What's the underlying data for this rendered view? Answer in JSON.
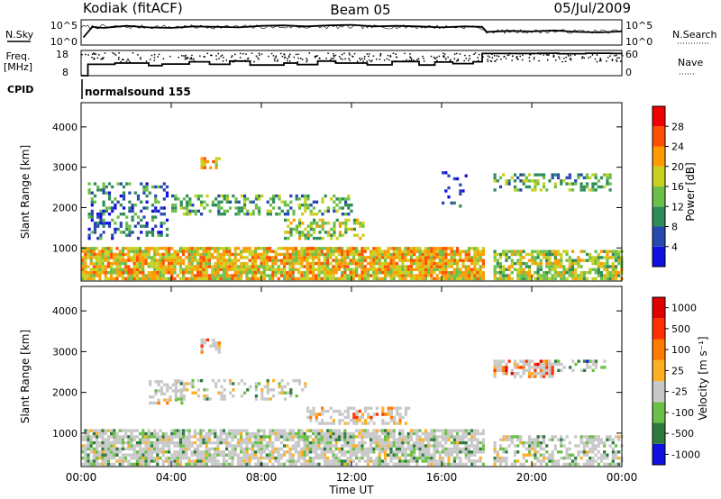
{
  "header": {
    "station": "Kodiak (fitACF)",
    "beam": "Beam 05",
    "date": "05/Jul/2009"
  },
  "chart_data": [
    {
      "type": "line",
      "title": "",
      "left_label": "N.Sky",
      "right_label": "N.Search",
      "ytick_labels": [
        "10^5",
        "10^0"
      ],
      "right_tick_labels": [
        "10^5",
        "10^0"
      ],
      "x_hours": [
        0.1,
        0.5,
        1,
        2,
        3,
        4,
        5,
        6,
        7,
        8,
        9,
        10,
        11,
        12,
        13,
        14,
        15,
        16,
        17,
        17.8,
        18,
        19,
        20,
        21,
        22,
        23,
        24
      ],
      "log10_noise": [
        1.5,
        3.6,
        3.4,
        3.8,
        3.5,
        3.4,
        3.7,
        3.6,
        3.5,
        3.8,
        3.9,
        3.7,
        3.9,
        4.0,
        3.7,
        3.8,
        3.7,
        3.5,
        3.7,
        3.6,
        2.6,
        2.8,
        2.7,
        2.9,
        2.6,
        2.5,
        2.7
      ]
    },
    {
      "type": "line",
      "title": "",
      "left_label_line1": "Freq.",
      "left_label_line2": "[MHz]",
      "right_label": "Nave",
      "ytick_labels": [
        "18",
        "8"
      ],
      "right_tick_labels": [
        "60",
        "0"
      ],
      "ylim": [
        8,
        18
      ],
      "steps_hours": [
        0,
        0.3,
        1.5,
        3.0,
        3.6,
        4.8,
        5.7,
        6.6,
        7.5,
        9.0,
        9.6,
        10.5,
        11.3,
        12.7,
        13.8,
        15.0,
        15.7,
        16.5,
        17.4,
        17.8,
        20.3,
        21.2,
        22.4,
        23.5,
        24
      ],
      "freq_steps": [
        8,
        12.5,
        13.0,
        12.0,
        12.6,
        13.5,
        12.5,
        13.8,
        12.2,
        13.0,
        12.4,
        13.8,
        13.0,
        12.3,
        13.6,
        12.2,
        13.4,
        12.8,
        13.5,
        16.8,
        16.9,
        16.7,
        16.9,
        16.8,
        16.8
      ]
    },
    {
      "type": "heatmap",
      "title": "",
      "cpid_label": "CPID",
      "cpid_value": "normalsound 155",
      "ylabel": "Slant Range [km]",
      "ytick_labels": [
        "1000",
        "2000",
        "3000",
        "4000"
      ],
      "ylim": [
        180,
        4600
      ],
      "xlim": [
        0,
        24
      ],
      "colorbar_label": "Power [dB]",
      "colorbar_ticks": [
        "28",
        "24",
        "20",
        "16",
        "12",
        "8",
        "4"
      ],
      "colors": [
        "#1010e0",
        "#2848b0",
        "#2f8c5a",
        "#6cc04a",
        "#c8d020",
        "#ff9a00",
        "#ff5000",
        "#f00000"
      ],
      "scatter_regions": [
        {
          "h1": 0.0,
          "h2": 17.8,
          "r1": 200,
          "r2": 1000,
          "bias": 5,
          "density": 0.85
        },
        {
          "h1": 18.3,
          "h2": 24.0,
          "r1": 200,
          "r2": 950,
          "bias": 4,
          "density": 0.7
        },
        {
          "h1": 0.3,
          "h2": 3.8,
          "r1": 1200,
          "r2": 2600,
          "bias": 2,
          "density": 0.35
        },
        {
          "h1": 4.0,
          "h2": 12.0,
          "r1": 1800,
          "r2": 2300,
          "bias": 3,
          "density": 0.4
        },
        {
          "h1": 9.0,
          "h2": 12.5,
          "r1": 1200,
          "r2": 1700,
          "bias": 4,
          "density": 0.55
        },
        {
          "h1": 18.3,
          "h2": 23.5,
          "r1": 2400,
          "r2": 2800,
          "bias": 3,
          "density": 0.45
        },
        {
          "h1": 5.3,
          "h2": 6.1,
          "r1": 2950,
          "r2": 3250,
          "bias": 5,
          "density": 0.6
        },
        {
          "h1": 16.0,
          "h2": 17.2,
          "r1": 2000,
          "r2": 3100,
          "bias": 1,
          "density": 0.12
        }
      ]
    },
    {
      "type": "heatmap",
      "title": "",
      "ylabel": "Slant Range [km]",
      "ytick_labels": [
        "1000",
        "2000",
        "3000",
        "4000"
      ],
      "ylim": [
        180,
        4600
      ],
      "xlim": [
        0,
        24
      ],
      "xlabel": "Time UT",
      "xtick_labels": [
        "00:00",
        "04:00",
        "08:00",
        "12:00",
        "16:00",
        "20:00",
        "00:00"
      ],
      "colorbar_label": "Velocity [m s⁻¹]",
      "colorbar_ticks": [
        "1000",
        "500",
        "100",
        "25",
        "-25",
        "-100",
        "-500",
        "-1000"
      ],
      "colors": [
        "#1010e0",
        "#2f7a3c",
        "#6cc04a",
        "#c8c8c8",
        "#ffb020",
        "#ff7a00",
        "#ff3000",
        "#e00000"
      ],
      "scatter_regions": [
        {
          "h1": 0.0,
          "h2": 17.8,
          "r1": 200,
          "r2": 1050,
          "bias": 3,
          "density": 0.8
        },
        {
          "h1": 18.3,
          "h2": 24.0,
          "r1": 200,
          "r2": 900,
          "bias": 3,
          "density": 0.6
        },
        {
          "h1": 10.0,
          "h2": 14.5,
          "r1": 1200,
          "r2": 1600,
          "bias": 5,
          "density": 0.5
        },
        {
          "h1": 18.3,
          "h2": 21.0,
          "r1": 2350,
          "r2": 2800,
          "bias": 6,
          "density": 0.7
        },
        {
          "h1": 21.0,
          "h2": 23.2,
          "r1": 2500,
          "r2": 2800,
          "bias": 2,
          "density": 0.4
        },
        {
          "h1": 3.0,
          "h2": 4.5,
          "r1": 1700,
          "r2": 2300,
          "bias": 4,
          "density": 0.5
        },
        {
          "h1": 4.0,
          "h2": 10.0,
          "r1": 1800,
          "r2": 2300,
          "bias": 3,
          "density": 0.3
        },
        {
          "h1": 5.3,
          "h2": 6.1,
          "r1": 2950,
          "r2": 3300,
          "bias": 5,
          "density": 0.6
        }
      ]
    }
  ]
}
